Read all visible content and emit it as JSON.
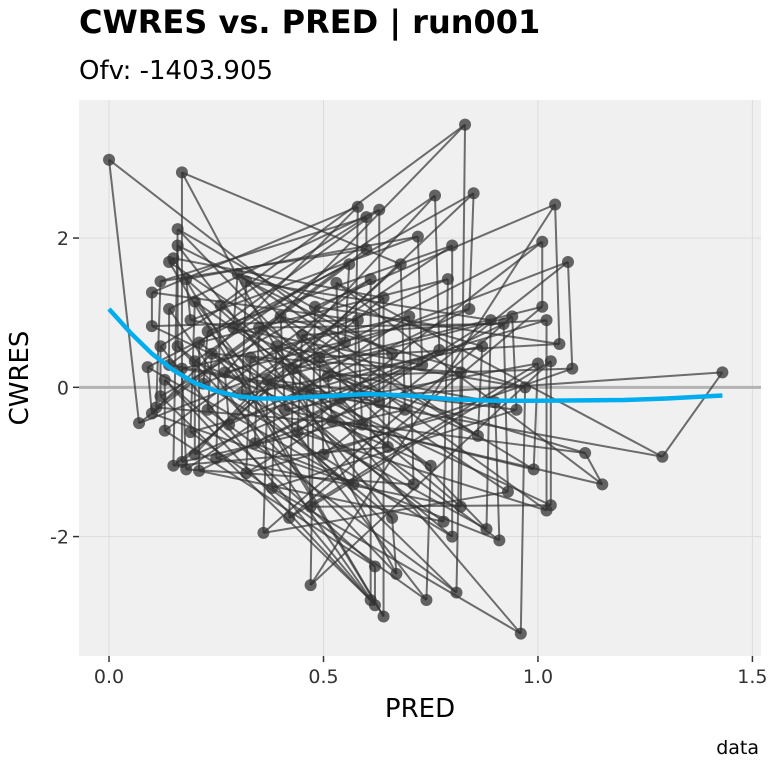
{
  "chart_data": {
    "type": "scatter",
    "title": "CWRES vs. PRED | run001",
    "subtitle": "Ofv: -1403.905",
    "xlabel": "PRED",
    "ylabel": "CWRES",
    "caption": "data",
    "xlim": [
      -0.07,
      1.52
    ],
    "ylim": [
      -3.6,
      3.85
    ],
    "xticks": [
      0,
      0.5,
      1.0,
      1.5
    ],
    "xtick_labels": [
      "0.0",
      "0.5",
      "1.0",
      "1.5"
    ],
    "yticks": [
      -2,
      0,
      2
    ],
    "ytick_labels": [
      "-2",
      "0",
      "2"
    ],
    "grid": true,
    "reference_line": {
      "y": 0,
      "color": "#b3b3b3"
    },
    "colors": {
      "points": "#333333",
      "smooth": "#00aeef",
      "panel": "#f0f0f0",
      "grid": "#dcdcdc"
    },
    "points": [
      [
        0.0,
        3.05
      ],
      [
        0.07,
        -0.48
      ],
      [
        0.09,
        0.27
      ],
      [
        0.1,
        -0.35
      ],
      [
        0.1,
        1.27
      ],
      [
        0.1,
        0.82
      ],
      [
        0.11,
        -0.27
      ],
      [
        0.12,
        1.42
      ],
      [
        0.12,
        0.55
      ],
      [
        0.12,
        -0.12
      ],
      [
        0.13,
        -0.58
      ],
      [
        0.13,
        0.1
      ],
      [
        0.14,
        1.05
      ],
      [
        0.14,
        0.3
      ],
      [
        0.14,
        1.68
      ],
      [
        0.15,
        1.73
      ],
      [
        0.15,
        -1.05
      ],
      [
        0.16,
        2.12
      ],
      [
        0.16,
        1.9
      ],
      [
        0.16,
        0.55
      ],
      [
        0.17,
        2.88
      ],
      [
        0.17,
        -1.0
      ],
      [
        0.17,
        0.25
      ],
      [
        0.18,
        -1.1
      ],
      [
        0.18,
        1.45
      ],
      [
        0.19,
        0.9
      ],
      [
        0.19,
        -0.6
      ],
      [
        0.2,
        1.15
      ],
      [
        0.2,
        0.35
      ],
      [
        0.2,
        -0.9
      ],
      [
        0.21,
        -1.12
      ],
      [
        0.21,
        0.6
      ],
      [
        0.22,
        0.05
      ],
      [
        0.23,
        0.75
      ],
      [
        0.23,
        -0.3
      ],
      [
        0.24,
        0.45
      ],
      [
        0.25,
        -0.95
      ],
      [
        0.26,
        1.1
      ],
      [
        0.27,
        0.2
      ],
      [
        0.28,
        -0.5
      ],
      [
        0.29,
        0.8
      ],
      [
        0.3,
        1.52
      ],
      [
        0.31,
        -0.1
      ],
      [
        0.32,
        1.42
      ],
      [
        0.32,
        -1.15
      ],
      [
        0.33,
        0.4
      ],
      [
        0.34,
        -0.75
      ],
      [
        0.35,
        0.8
      ],
      [
        0.36,
        -1.95
      ],
      [
        0.37,
        0.1
      ],
      [
        0.38,
        -1.35
      ],
      [
        0.39,
        0.55
      ],
      [
        0.4,
        0.95
      ],
      [
        0.41,
        -0.3
      ],
      [
        0.42,
        -1.75
      ],
      [
        0.43,
        0.25
      ],
      [
        0.44,
        -0.6
      ],
      [
        0.45,
        0.7
      ],
      [
        0.46,
        -0.05
      ],
      [
        0.47,
        -1.6
      ],
      [
        0.47,
        -2.65
      ],
      [
        0.48,
        1.08
      ],
      [
        0.49,
        0.4
      ],
      [
        0.5,
        -0.9
      ],
      [
        0.51,
        0.15
      ],
      [
        0.52,
        -0.45
      ],
      [
        0.53,
        1.4
      ],
      [
        0.54,
        -0.15
      ],
      [
        0.55,
        0.6
      ],
      [
        0.56,
        1.65
      ],
      [
        0.57,
        -1.3
      ],
      [
        0.58,
        2.42
      ],
      [
        0.58,
        0.9
      ],
      [
        0.59,
        -0.5
      ],
      [
        0.6,
        1.85
      ],
      [
        0.6,
        2.28
      ],
      [
        0.61,
        -2.85
      ],
      [
        0.61,
        1.45
      ],
      [
        0.62,
        -2.4
      ],
      [
        0.62,
        -2.92
      ],
      [
        0.63,
        2.38
      ],
      [
        0.63,
        -0.2
      ],
      [
        0.64,
        -3.07
      ],
      [
        0.64,
        1.2
      ],
      [
        0.65,
        -0.8
      ],
      [
        0.66,
        0.45
      ],
      [
        0.66,
        -1.75
      ],
      [
        0.67,
        -2.5
      ],
      [
        0.68,
        1.65
      ],
      [
        0.69,
        -0.3
      ],
      [
        0.7,
        0.95
      ],
      [
        0.71,
        -1.3
      ],
      [
        0.72,
        2.02
      ],
      [
        0.73,
        0.3
      ],
      [
        0.74,
        -2.85
      ],
      [
        0.75,
        -1.05
      ],
      [
        0.76,
        2.57
      ],
      [
        0.77,
        0.5
      ],
      [
        0.78,
        -1.8
      ],
      [
        0.79,
        1.45
      ],
      [
        0.8,
        -2.0
      ],
      [
        0.8,
        1.9
      ],
      [
        0.81,
        -2.75
      ],
      [
        0.82,
        0.2
      ],
      [
        0.82,
        -1.6
      ],
      [
        0.83,
        3.52
      ],
      [
        0.84,
        1.05
      ],
      [
        0.85,
        2.6
      ],
      [
        0.86,
        -0.65
      ],
      [
        0.87,
        0.55
      ],
      [
        0.88,
        -1.9
      ],
      [
        0.89,
        0.9
      ],
      [
        0.9,
        -0.2
      ],
      [
        0.91,
        -2.05
      ],
      [
        0.92,
        0.85
      ],
      [
        0.93,
        -1.4
      ],
      [
        0.94,
        0.95
      ],
      [
        0.95,
        -0.3
      ],
      [
        0.96,
        -3.3
      ],
      [
        0.97,
        0.0
      ],
      [
        0.99,
        -1.1
      ],
      [
        1.0,
        0.32
      ],
      [
        1.01,
        1.08
      ],
      [
        1.01,
        1.95
      ],
      [
        1.02,
        -1.65
      ],
      [
        1.02,
        0.9
      ],
      [
        1.03,
        -1.58
      ],
      [
        1.03,
        0.35
      ],
      [
        1.04,
        2.45
      ],
      [
        1.05,
        0.58
      ],
      [
        1.07,
        1.68
      ],
      [
        1.08,
        0.25
      ],
      [
        1.11,
        -0.88
      ],
      [
        1.15,
        -1.3
      ],
      [
        1.29,
        -0.93
      ],
      [
        1.43,
        0.2
      ]
    ],
    "smooth_line": [
      [
        0.0,
        1.05
      ],
      [
        0.05,
        0.73
      ],
      [
        0.1,
        0.45
      ],
      [
        0.15,
        0.23
      ],
      [
        0.2,
        0.06
      ],
      [
        0.25,
        -0.05
      ],
      [
        0.3,
        -0.12
      ],
      [
        0.35,
        -0.15
      ],
      [
        0.4,
        -0.15
      ],
      [
        0.5,
        -0.12
      ],
      [
        0.6,
        -0.09
      ],
      [
        0.7,
        -0.11
      ],
      [
        0.8,
        -0.16
      ],
      [
        0.9,
        -0.18
      ],
      [
        1.0,
        -0.18
      ],
      [
        1.2,
        -0.17
      ],
      [
        1.3,
        -0.15
      ],
      [
        1.43,
        -0.11
      ]
    ]
  }
}
